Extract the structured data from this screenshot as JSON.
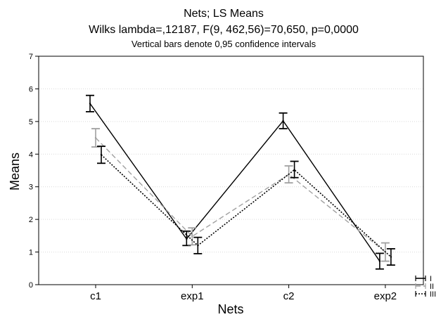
{
  "chart_data": {
    "type": "line",
    "title": "Nets; LS Means",
    "subtitle": "Wilks lambda=,12187, F(9, 462,56)=70,650, p=0,0000",
    "note": "Vertical bars denote 0,95 confidence intervals",
    "xlabel": "Nets",
    "ylabel": "Means",
    "categories": [
      "c1",
      "exp1",
      "c2",
      "exp2"
    ],
    "ylim": [
      0,
      7
    ],
    "yticks": [
      "0",
      "1",
      "2",
      "3",
      "4",
      "5",
      "6",
      "7"
    ],
    "grid": true,
    "legend_position": "bottom-right",
    "series": [
      {
        "name": "I",
        "style": "solid",
        "color": "#000000",
        "values": [
          5.55,
          1.4,
          5.02,
          0.72
        ],
        "ci_low": [
          5.3,
          1.2,
          4.78,
          0.48
        ],
        "ci_high": [
          5.8,
          1.64,
          5.26,
          0.96
        ]
      },
      {
        "name": "II",
        "style": "dashed",
        "color": "#a0a0a0",
        "values": [
          4.5,
          1.48,
          3.38,
          1.0
        ],
        "ci_low": [
          4.22,
          1.22,
          3.12,
          0.72
        ],
        "ci_high": [
          4.78,
          1.74,
          3.64,
          1.28
        ]
      },
      {
        "name": "III",
        "style": "dotted",
        "color": "#000000",
        "values": [
          3.98,
          1.2,
          3.52,
          0.85
        ],
        "ci_low": [
          3.72,
          0.95,
          3.28,
          0.6
        ],
        "ci_high": [
          4.24,
          1.45,
          3.78,
          1.1
        ]
      }
    ]
  }
}
